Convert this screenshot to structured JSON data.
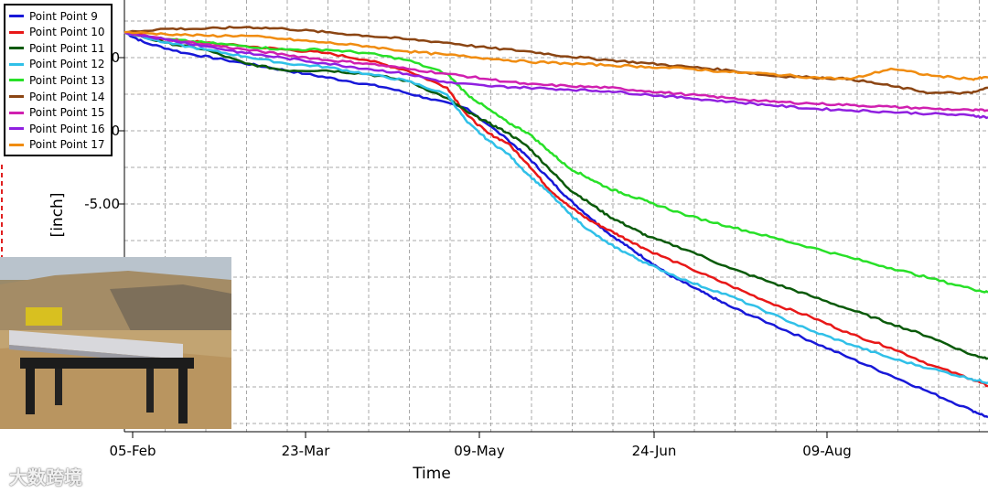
{
  "watermark": "大数跨境",
  "chart_data": {
    "type": "line",
    "title": "",
    "xlabel": "Time",
    "ylabel": "[inch]",
    "x_ticks": [
      "05-Feb",
      "23-Mar",
      "09-May",
      "24-Jun",
      "09-Aug"
    ],
    "y_ticks": [
      "-1.00",
      "-3.00",
      "-5.00"
    ],
    "ylim": [
      -11,
      0
    ],
    "grid": true,
    "legend_position": "top-left",
    "x_unit": "days since 05-Feb",
    "series": [
      {
        "name": "Point Point 9",
        "color": "#1818d8",
        "x": [
          0,
          5,
          15,
          25,
          35,
          45,
          55,
          65,
          75,
          85,
          95,
          100,
          105,
          110,
          115,
          120,
          125,
          130,
          135,
          140,
          145,
          150,
          160,
          170,
          180,
          190,
          200,
          210,
          214
        ],
        "y": [
          0,
          -0.3,
          -0.6,
          -0.8,
          -1.0,
          -1.2,
          -1.4,
          -1.6,
          -1.9,
          -2.2,
          -3.1,
          -3.6,
          -4.2,
          -4.8,
          -5.3,
          -5.8,
          -6.2,
          -6.6,
          -7.0,
          -7.3,
          -7.6,
          -7.9,
          -8.4,
          -8.9,
          -9.4,
          -9.9,
          -10.4,
          -10.9,
          -11.1
        ]
      },
      {
        "name": "Point Point 10",
        "color": "#e81818",
        "x": [
          0,
          10,
          20,
          30,
          40,
          50,
          60,
          70,
          80,
          85,
          90,
          95,
          100,
          105,
          110,
          115,
          120,
          125,
          130,
          140,
          150,
          160,
          170,
          180,
          190,
          200,
          210,
          214
        ],
        "y": [
          0,
          -0.2,
          -0.3,
          -0.4,
          -0.5,
          -0.6,
          -0.8,
          -1.1,
          -1.6,
          -2.4,
          -2.9,
          -3.2,
          -3.8,
          -4.5,
          -5.0,
          -5.4,
          -5.7,
          -6.0,
          -6.3,
          -6.8,
          -7.3,
          -7.8,
          -8.2,
          -8.7,
          -9.1,
          -9.6,
          -10.0,
          -10.2
        ]
      },
      {
        "name": "Point Point 11",
        "color": "#0a5a0a",
        "x": [
          0,
          10,
          20,
          30,
          40,
          50,
          60,
          70,
          80,
          85,
          90,
          95,
          100,
          105,
          110,
          115,
          120,
          125,
          130,
          140,
          150,
          160,
          170,
          180,
          190,
          200,
          210,
          214
        ],
        "y": [
          0,
          -0.3,
          -0.5,
          -0.9,
          -1.1,
          -1.1,
          -1.2,
          -1.4,
          -1.9,
          -2.3,
          -2.6,
          -2.9,
          -3.3,
          -3.9,
          -4.5,
          -4.9,
          -5.3,
          -5.6,
          -5.9,
          -6.3,
          -6.8,
          -7.2,
          -7.6,
          -8.0,
          -8.4,
          -8.8,
          -9.3,
          -9.4
        ]
      },
      {
        "name": "Point Point 12",
        "color": "#30c0e8",
        "x": [
          0,
          10,
          20,
          30,
          40,
          50,
          60,
          70,
          80,
          85,
          90,
          95,
          100,
          105,
          110,
          115,
          120,
          125,
          130,
          140,
          150,
          160,
          170,
          180,
          190,
          200,
          210,
          214
        ],
        "y": [
          0,
          -0.3,
          -0.5,
          -0.7,
          -0.9,
          -1.0,
          -1.2,
          -1.4,
          -1.8,
          -2.6,
          -3.1,
          -3.5,
          -4.1,
          -4.6,
          -5.2,
          -5.7,
          -6.1,
          -6.4,
          -6.7,
          -7.2,
          -7.6,
          -8.1,
          -8.6,
          -9.0,
          -9.4,
          -9.7,
          -10.0,
          -10.1
        ]
      },
      {
        "name": "Point Point 13",
        "color": "#28e028",
        "x": [
          0,
          10,
          20,
          30,
          40,
          50,
          60,
          70,
          80,
          85,
          90,
          95,
          100,
          105,
          110,
          115,
          120,
          125,
          130,
          140,
          150,
          160,
          170,
          180,
          190,
          200,
          210,
          214
        ],
        "y": [
          0,
          -0.2,
          -0.3,
          -0.4,
          -0.5,
          -0.5,
          -0.6,
          -0.8,
          -1.2,
          -1.8,
          -2.2,
          -2.6,
          -2.9,
          -3.4,
          -3.9,
          -4.2,
          -4.5,
          -4.7,
          -4.9,
          -5.3,
          -5.6,
          -5.9,
          -6.2,
          -6.5,
          -6.8,
          -7.1,
          -7.4,
          -7.5
        ]
      },
      {
        "name": "Point Point 14",
        "color": "#8b4513",
        "x": [
          0,
          10,
          20,
          30,
          40,
          50,
          60,
          70,
          80,
          90,
          100,
          110,
          120,
          130,
          140,
          150,
          160,
          170,
          180,
          190,
          200,
          210,
          214
        ],
        "y": [
          0,
          0.1,
          0.1,
          0.15,
          0.1,
          0.0,
          -0.1,
          -0.2,
          -0.3,
          -0.45,
          -0.55,
          -0.7,
          -0.8,
          -0.9,
          -1.0,
          -1.1,
          -1.25,
          -1.3,
          -1.35,
          -1.55,
          -1.75,
          -1.75,
          -1.6
        ]
      },
      {
        "name": "Point Point 15",
        "color": "#d020b0",
        "x": [
          0,
          10,
          20,
          30,
          40,
          50,
          60,
          70,
          80,
          90,
          100,
          110,
          120,
          130,
          140,
          150,
          160,
          170,
          180,
          190,
          200,
          210,
          214
        ],
        "y": [
          0,
          -0.2,
          -0.35,
          -0.5,
          -0.65,
          -0.8,
          -0.9,
          -1.05,
          -1.2,
          -1.35,
          -1.5,
          -1.55,
          -1.6,
          -1.7,
          -1.8,
          -1.9,
          -2.0,
          -2.05,
          -2.1,
          -2.15,
          -2.2,
          -2.25,
          -2.25
        ]
      },
      {
        "name": "Point Point 16",
        "color": "#9020e0",
        "x": [
          0,
          10,
          20,
          30,
          40,
          50,
          60,
          70,
          80,
          90,
          100,
          110,
          120,
          130,
          140,
          150,
          160,
          170,
          180,
          190,
          200,
          210,
          214
        ],
        "y": [
          0,
          -0.2,
          -0.4,
          -0.6,
          -0.75,
          -0.9,
          -1.05,
          -1.2,
          -1.45,
          -1.55,
          -1.6,
          -1.65,
          -1.7,
          -1.8,
          -1.9,
          -2.0,
          -2.1,
          -2.2,
          -2.25,
          -2.3,
          -2.35,
          -2.4,
          -2.45
        ]
      },
      {
        "name": "Point Point 17",
        "color": "#f08c10",
        "x": [
          0,
          10,
          20,
          30,
          40,
          50,
          60,
          70,
          80,
          90,
          100,
          110,
          120,
          130,
          140,
          150,
          160,
          170,
          180,
          190,
          200,
          210,
          214
        ],
        "y": [
          0,
          -0.05,
          -0.1,
          -0.1,
          -0.2,
          -0.3,
          -0.4,
          -0.55,
          -0.65,
          -0.75,
          -0.85,
          -0.9,
          -0.95,
          -1.0,
          -1.05,
          -1.15,
          -1.2,
          -1.3,
          -1.35,
          -1.05,
          -1.25,
          -1.35,
          -1.3
        ]
      }
    ]
  }
}
